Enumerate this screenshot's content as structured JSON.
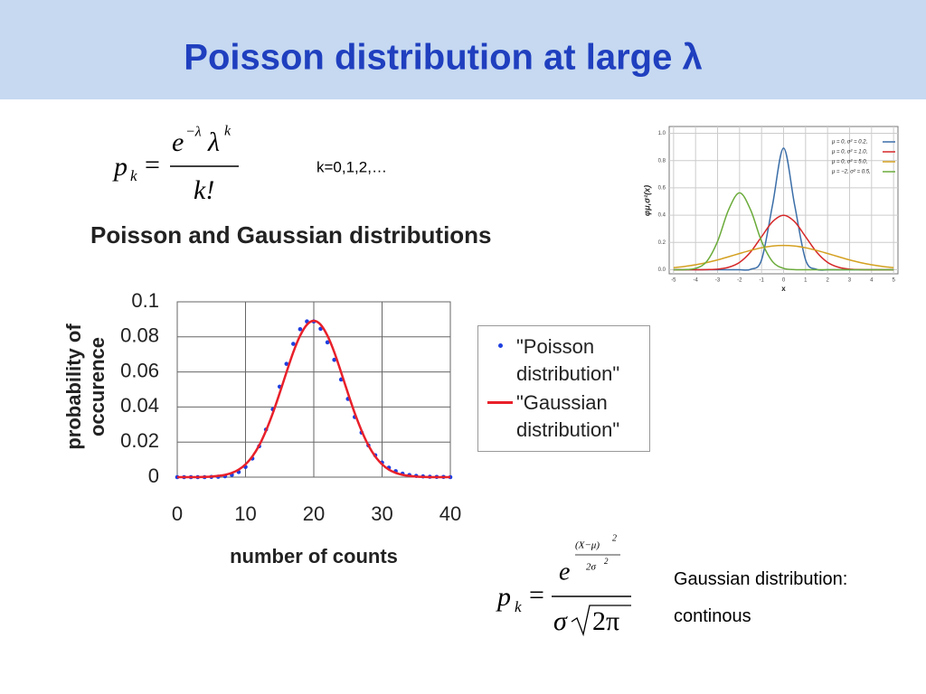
{
  "slide": {
    "title": "Poisson distribution at large λ"
  },
  "formulas": {
    "poisson": {
      "p": "p",
      "sub": "k",
      "eq": "=",
      "base": "e",
      "exp": "−λ",
      "lam": "λ",
      "lam_exp": "k",
      "den": "k!"
    },
    "gaussian": {
      "p": "p",
      "sub": "k",
      "eq": "=",
      "base": "e",
      "exp_num": "(X−μ)",
      "exp_pow": "2",
      "exp_den": "2σ",
      "exp_den_pow": "2",
      "den_sigma": "σ",
      "den_root": "2π"
    }
  },
  "note": "k=0,1,2,…",
  "caption": [
    "Gaussian distribution:",
    "continous"
  ],
  "chart_data": [
    {
      "type": "line",
      "title": "Poisson and Gaussian distributions",
      "xlabel": "number of counts",
      "ylabel": "probability of occurence",
      "x": [
        0,
        1,
        2,
        3,
        4,
        5,
        6,
        7,
        8,
        9,
        10,
        11,
        12,
        13,
        14,
        15,
        16,
        17,
        18,
        19,
        20,
        21,
        22,
        23,
        24,
        25,
        26,
        27,
        28,
        29,
        30,
        31,
        32,
        33,
        34,
        35,
        36,
        37,
        38,
        39,
        40
      ],
      "series": [
        {
          "name": "\"Poisson distribution\"",
          "color": "#1f3fe0",
          "style": "markers",
          "values": [
            0,
            0,
            0,
            0,
            0,
            0.0001,
            0.0002,
            0.0005,
            0.0013,
            0.0029,
            0.0058,
            0.0106,
            0.0176,
            0.0271,
            0.0387,
            0.0516,
            0.0646,
            0.076,
            0.0844,
            0.0888,
            0.0888,
            0.0846,
            0.0769,
            0.0669,
            0.0557,
            0.0446,
            0.0343,
            0.0254,
            0.0181,
            0.0125,
            0.0083,
            0.0054,
            0.0034,
            0.002,
            0.0012,
            0.0007,
            0.0004,
            0.0002,
            0.0001,
            0.0001,
            0
          ]
        },
        {
          "name": "\"Gaussian distribution\"",
          "color": "#e8202a",
          "style": "line",
          "values": [
            0,
            0,
            0,
            0,
            0.0001,
            0.0003,
            0.0007,
            0.0013,
            0.0024,
            0.0043,
            0.0073,
            0.0118,
            0.0181,
            0.0265,
            0.0365,
            0.0479,
            0.0598,
            0.0713,
            0.0807,
            0.087,
            0.0892,
            0.087,
            0.0807,
            0.0713,
            0.0598,
            0.0479,
            0.0365,
            0.0265,
            0.0181,
            0.0118,
            0.0073,
            0.0043,
            0.0024,
            0.0013,
            0.0007,
            0.0003,
            0.0001,
            0,
            0,
            0,
            0
          ]
        }
      ],
      "xlim": [
        0,
        40
      ],
      "xticks": [
        0,
        10,
        20,
        30,
        40
      ],
      "ylim": [
        0,
        0.1
      ],
      "yticks": [
        0,
        0.02,
        0.04,
        0.06,
        0.08,
        0.1
      ],
      "grid": true,
      "legend": "right-outside"
    },
    {
      "type": "line",
      "xlabel": "x",
      "ylabel": "φμ,σ²(x)",
      "x": [
        -5,
        -4.5,
        -4,
        -3.5,
        -3,
        -2.5,
        -2,
        -1.5,
        -1,
        -0.5,
        0,
        0.5,
        1,
        1.5,
        2,
        2.5,
        3,
        3.5,
        4,
        4.5,
        5
      ],
      "series": [
        {
          "name": "μ = 0,   σ² = 0.2,",
          "color": "#3b6ea8",
          "style": "line",
          "values": [
            0,
            0,
            0,
            0,
            0,
            0,
            0,
            0.003,
            0.073,
            0.477,
            0.892,
            0.477,
            0.073,
            0.003,
            0,
            0,
            0,
            0,
            0,
            0,
            0
          ]
        },
        {
          "name": "μ = 0,   σ² = 1.0,",
          "color": "#d62728",
          "style": "line",
          "values": [
            0,
            0,
            0,
            0.001,
            0.004,
            0.018,
            0.054,
            0.13,
            0.242,
            0.352,
            0.399,
            0.352,
            0.242,
            0.13,
            0.054,
            0.018,
            0.004,
            0.001,
            0,
            0,
            0
          ]
        },
        {
          "name": "μ = 0,   σ² = 5.0,",
          "color": "#d4a020",
          "style": "line",
          "values": [
            0.015,
            0.024,
            0.036,
            0.052,
            0.072,
            0.095,
            0.119,
            0.142,
            0.161,
            0.174,
            0.178,
            0.174,
            0.161,
            0.142,
            0.119,
            0.095,
            0.072,
            0.052,
            0.036,
            0.024,
            0.015
          ]
        },
        {
          "name": "μ = −2, σ² = 0.5,",
          "color": "#6aab3a",
          "style": "line",
          "values": [
            0,
            0.001,
            0.01,
            0.059,
            0.208,
            0.439,
            0.564,
            0.439,
            0.208,
            0.059,
            0.01,
            0.001,
            0,
            0,
            0,
            0,
            0,
            0,
            0,
            0,
            0
          ]
        }
      ],
      "xlim": [
        -5.2,
        5.2
      ],
      "xticks": [
        -5,
        -4,
        -3,
        -2,
        -1,
        0,
        1,
        2,
        3,
        4,
        5
      ],
      "ylim": [
        -0.03,
        1.05
      ],
      "yticks": [
        {
          "value": 0,
          "label": "0.0"
        },
        {
          "value": 0.2,
          "label": "0.2"
        },
        {
          "value": 0.4,
          "label": "0.4"
        },
        {
          "value": 0.6,
          "label": "0.6"
        },
        {
          "value": 0.8,
          "label": "0.8"
        },
        {
          "value": 1,
          "label": "1.0"
        }
      ],
      "grid": true,
      "legend": "upper right"
    }
  ]
}
